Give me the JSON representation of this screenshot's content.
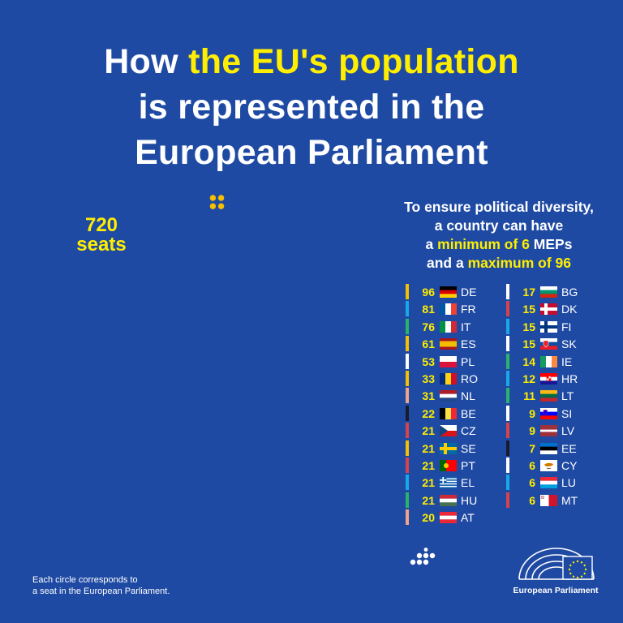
{
  "title": {
    "line1_a": "How ",
    "line1_b": "the EU's population",
    "line2": "is represented in the",
    "line3": "European Parliament"
  },
  "seats": {
    "number": "720",
    "label": "seats"
  },
  "intro": {
    "line1": "To ensure political diversity,",
    "line2": "a country can have",
    "line3_a": "a ",
    "line3_b": "minimum of 6",
    "line3_c": " MEPs",
    "line4_a": "and a ",
    "line4_b": "maximum of 96"
  },
  "countries_left": [
    {
      "seats": "96",
      "code": "DE",
      "color": "#f5c000"
    },
    {
      "seats": "81",
      "code": "FR",
      "color": "#18a8e8"
    },
    {
      "seats": "76",
      "code": "IT",
      "color": "#2ab36a"
    },
    {
      "seats": "61",
      "code": "ES",
      "color": "#f5c000"
    },
    {
      "seats": "53",
      "code": "PL",
      "color": "#ffffff"
    },
    {
      "seats": "33",
      "code": "RO",
      "color": "#f5c000"
    },
    {
      "seats": "31",
      "code": "NL",
      "color": "#f0a38c"
    },
    {
      "seats": "22",
      "code": "BE",
      "color": "#1a1a2e"
    },
    {
      "seats": "21",
      "code": "CZ",
      "color": "#d8424b"
    },
    {
      "seats": "21",
      "code": "SE",
      "color": "#f5c000"
    },
    {
      "seats": "21",
      "code": "PT",
      "color": "#d8424b"
    },
    {
      "seats": "21",
      "code": "EL",
      "color": "#18a8e8"
    },
    {
      "seats": "21",
      "code": "HU",
      "color": "#2ab36a"
    },
    {
      "seats": "20",
      "code": "AT",
      "color": "#f0a38c"
    }
  ],
  "countries_right": [
    {
      "seats": "17",
      "code": "BG",
      "color": "#ffffff"
    },
    {
      "seats": "15",
      "code": "DK",
      "color": "#d8424b"
    },
    {
      "seats": "15",
      "code": "FI",
      "color": "#18a8e8"
    },
    {
      "seats": "15",
      "code": "SK",
      "color": "#ffffff"
    },
    {
      "seats": "14",
      "code": "IE",
      "color": "#2ab36a"
    },
    {
      "seats": "12",
      "code": "HR",
      "color": "#18a8e8"
    },
    {
      "seats": "11",
      "code": "LT",
      "color": "#2ab36a"
    },
    {
      "seats": "9",
      "code": "SI",
      "color": "#ffffff"
    },
    {
      "seats": "9",
      "code": "LV",
      "color": "#d8424b"
    },
    {
      "seats": "7",
      "code": "EE",
      "color": "#1a1a2e"
    },
    {
      "seats": "6",
      "code": "CY",
      "color": "#ffffff"
    },
    {
      "seats": "6",
      "code": "LU",
      "color": "#18a8e8"
    },
    {
      "seats": "6",
      "code": "MT",
      "color": "#d8424b"
    }
  ],
  "footnote": {
    "line1": "Each circle corresponds to",
    "line2": "a seat in the European Parliament."
  },
  "logo": {
    "text": "European Parliament"
  },
  "colors": {
    "background": "#1f4aa3",
    "yellow": "#f5c000",
    "highlight": "#ffee00",
    "blue": "#18a8e8",
    "green": "#2ab36a",
    "red": "#d8424b",
    "white": "#ffffff",
    "pink": "#f0a38c",
    "dark": "#1a1a2e"
  }
}
